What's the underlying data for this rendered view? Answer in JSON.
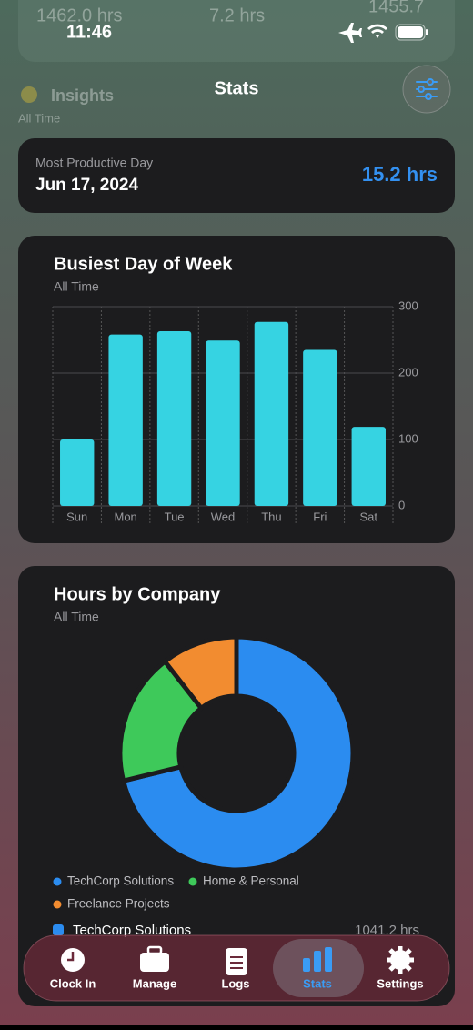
{
  "status_bar": {
    "time": "11:46"
  },
  "background": {
    "top_values": [
      "1462.0 hrs",
      "7.2 hrs",
      "1455.7"
    ],
    "insights_title": "Insights",
    "insights_subtitle": "All Time"
  },
  "header": {
    "title": "Stats"
  },
  "summary": {
    "label": "Most Productive Day",
    "date": "Jun 17, 2024",
    "value": "15.2 hrs"
  },
  "chart_data": [
    {
      "type": "bar",
      "title": "Busiest Day of Week",
      "subtitle": "All Time",
      "categories": [
        "Sun",
        "Mon",
        "Tue",
        "Wed",
        "Thu",
        "Fri",
        "Sat"
      ],
      "values": [
        100,
        258,
        263,
        249,
        277,
        235,
        119
      ],
      "color": "#36d3e2",
      "ylim": [
        0,
        300
      ],
      "yticks": [
        0,
        100,
        200,
        300
      ],
      "grid": true
    },
    {
      "type": "pie",
      "title": "Hours by Company",
      "subtitle": "All Time",
      "categories": [
        "TechCorp Solutions",
        "Home & Personal",
        "Freelance Projects"
      ],
      "values": [
        1041.2,
        266.8,
        154.0
      ],
      "colors": [
        "#2b8cf0",
        "#3ec95a",
        "#f28c30"
      ],
      "donut": true
    }
  ],
  "company_list": [
    {
      "name": "TechCorp Solutions",
      "hours": "1041.2 hrs"
    }
  ],
  "tab_bar": {
    "tabs": [
      "Clock In",
      "Manage",
      "Logs",
      "Stats",
      "Settings"
    ],
    "active": 3
  }
}
